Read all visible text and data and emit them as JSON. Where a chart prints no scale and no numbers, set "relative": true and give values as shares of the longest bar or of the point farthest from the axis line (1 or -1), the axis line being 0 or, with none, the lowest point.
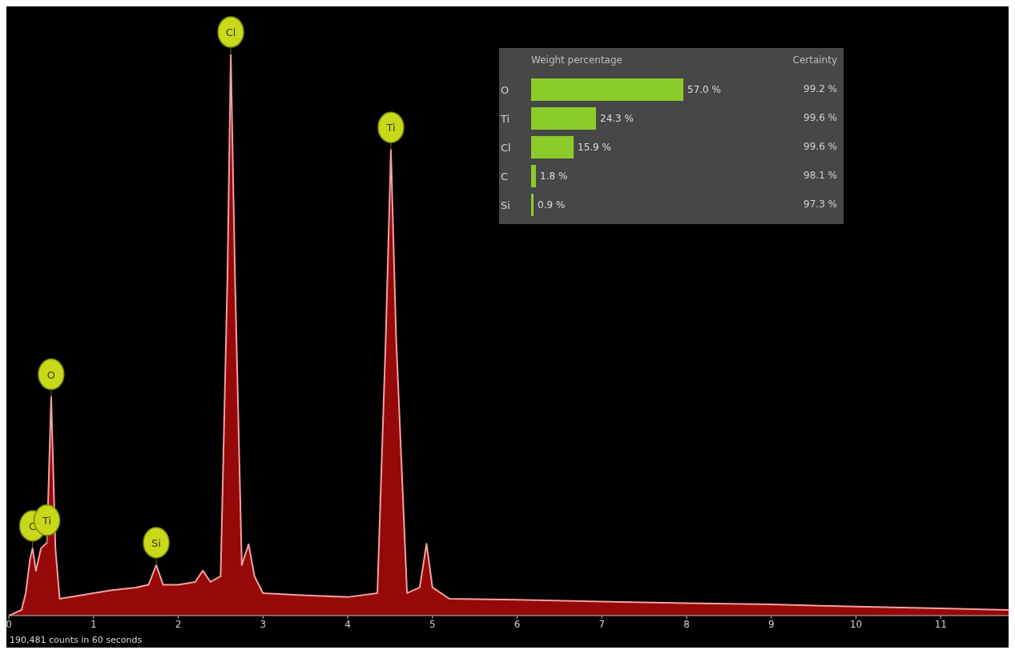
{
  "chart_data": [
    {
      "type": "area",
      "relative": true,
      "xlim": [
        0,
        11.8
      ],
      "xticks": [
        0,
        1,
        2,
        3,
        4,
        5,
        6,
        7,
        8,
        9,
        10,
        11
      ],
      "tick_labels": "x",
      "x": [
        0,
        0.15,
        0.2,
        0.25,
        0.28,
        0.32,
        0.38,
        0.45,
        0.5,
        0.55,
        0.6,
        0.8,
        1.0,
        1.2,
        1.5,
        1.65,
        1.74,
        1.82,
        2.0,
        2.2,
        2.29,
        2.38,
        2.5,
        2.58,
        2.62,
        2.67,
        2.75,
        2.83,
        2.9,
        3.0,
        3.5,
        4.0,
        4.35,
        4.45,
        4.51,
        4.57,
        4.7,
        4.85,
        4.93,
        5.0,
        5.2,
        6,
        7,
        8,
        9,
        10,
        11,
        11.8
      ],
      "series": [
        {
          "color": "#a50a0a",
          "values": [
            0,
            0.01,
            0.04,
            0.1,
            0.12,
            0.08,
            0.12,
            0.13,
            0.39,
            0.12,
            0.03,
            0.035,
            0.04,
            0.045,
            0.05,
            0.055,
            0.09,
            0.055,
            0.055,
            0.06,
            0.08,
            0.06,
            0.07,
            0.6,
            1,
            0.6,
            0.09,
            0.127,
            0.07,
            0.04,
            0.036,
            0.033,
            0.04,
            0.5,
            0.83,
            0.5,
            0.04,
            0.05,
            0.128,
            0.05,
            0.03,
            0.028,
            0.025,
            0.022,
            0.02,
            0.016,
            0.013,
            0.01
          ]
        }
      ],
      "annotations": [
        {
          "text": "C",
          "x": 0.28,
          "y": 0.12
        },
        {
          "text": "Ti",
          "x": 0.45,
          "y": 0.13
        },
        {
          "text": "O",
          "x": 0.5,
          "y": 0.39
        },
        {
          "text": "Si",
          "x": 1.74,
          "y": 0.09
        },
        {
          "text": "Cl",
          "x": 2.62,
          "y": 1
        },
        {
          "text": "Ti",
          "x": 4.51,
          "y": 0.83
        },
        "190,481 counts in 60 seconds"
      ]
    },
    {
      "type": "bar",
      "orientation": "horizontal",
      "title": "Weight percentage",
      "categories": [
        "O",
        "Ti",
        "Cl",
        "C",
        "Si"
      ],
      "values": [
        57.0,
        24.3,
        15.9,
        1.8,
        0.9
      ],
      "value_labels": [
        "57.0 %",
        "24.3 %",
        "15.9 %",
        "1.8 %",
        "0.9 %"
      ],
      "color": "#8ccc2a",
      "tick_labels": "y",
      "annotations": [
        "Certainty",
        "99.2 %",
        "99.6 %",
        "99.6 %",
        "98.1 %",
        "97.3 %"
      ]
    }
  ]
}
